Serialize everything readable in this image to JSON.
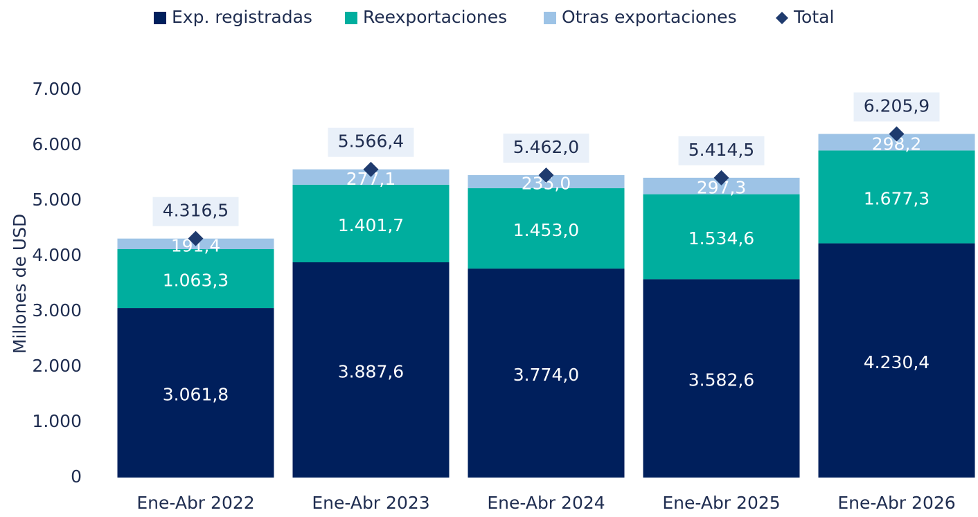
{
  "chart_data": {
    "type": "bar",
    "stacked": true,
    "legend": "top",
    "ylabel": "Millones de USD",
    "categories": [
      "Ene-Abr 2022",
      "Ene-Abr 2023",
      "Ene-Abr 2024",
      "Ene-Abr 2025",
      "Ene-Abr 2026"
    ],
    "series": [
      {
        "name": "Exp. registradas",
        "color": "#001f5c",
        "values": [
          3061.8,
          3887.6,
          3774.0,
          3582.6,
          4230.4
        ],
        "value_labels": [
          "3.061,8",
          "3.887,6",
          "3.774,0",
          "3.582,6",
          "4.230,4"
        ]
      },
      {
        "name": "Reexportaciones",
        "color": "#00ae9e",
        "values": [
          1063.3,
          1401.7,
          1453.0,
          1534.6,
          1677.3
        ],
        "value_labels": [
          "1.063,3",
          "1.401,7",
          "1.453,0",
          "1.534,6",
          "1.677,3"
        ]
      },
      {
        "name": "Otras exportaciones",
        "color": "#9dc3e6",
        "values": [
          191.4,
          277.1,
          235.0,
          297.3,
          298.2
        ],
        "value_labels": [
          "191,4",
          "277,1",
          "235,0",
          "297,3",
          "298,2"
        ]
      },
      {
        "name": "Total",
        "color": "#1f3b6e",
        "marker": "diamond",
        "values": [
          4316.5,
          5566.4,
          5462.0,
          5414.5,
          6205.9
        ],
        "value_labels": [
          "4.316,5",
          "5.566,4",
          "5.462,0",
          "5.414,5",
          "6.205,9"
        ]
      }
    ],
    "ylim": [
      0,
      7000
    ],
    "yticks": [
      0,
      {
        "value": 1000,
        "label": "1.000"
      },
      {
        "value": 2000,
        "label": "2.000"
      },
      {
        "value": 3000,
        "label": "3.000"
      },
      {
        "value": 4000,
        "label": "4.000"
      },
      {
        "value": 5000,
        "label": "5.000"
      },
      {
        "value": 6000,
        "label": "6.000"
      },
      {
        "value": 7000,
        "label": "7.000"
      }
    ],
    "grid": false
  }
}
